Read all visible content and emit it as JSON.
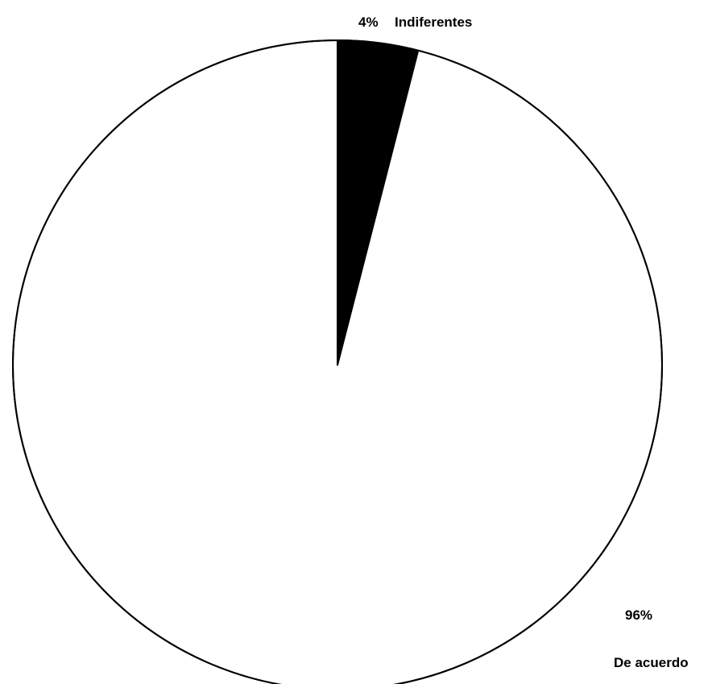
{
  "chart_data": {
    "type": "pie",
    "slices": [
      {
        "category": "Indiferentes",
        "value": 4,
        "value_label": "4%",
        "color": "#000000"
      },
      {
        "category": "De acuerdo",
        "value": 96,
        "value_label": "96%",
        "color": "#ffffff"
      }
    ],
    "start_angle_deg": 0,
    "direction": "clockwise",
    "outline_color": "#000000"
  }
}
